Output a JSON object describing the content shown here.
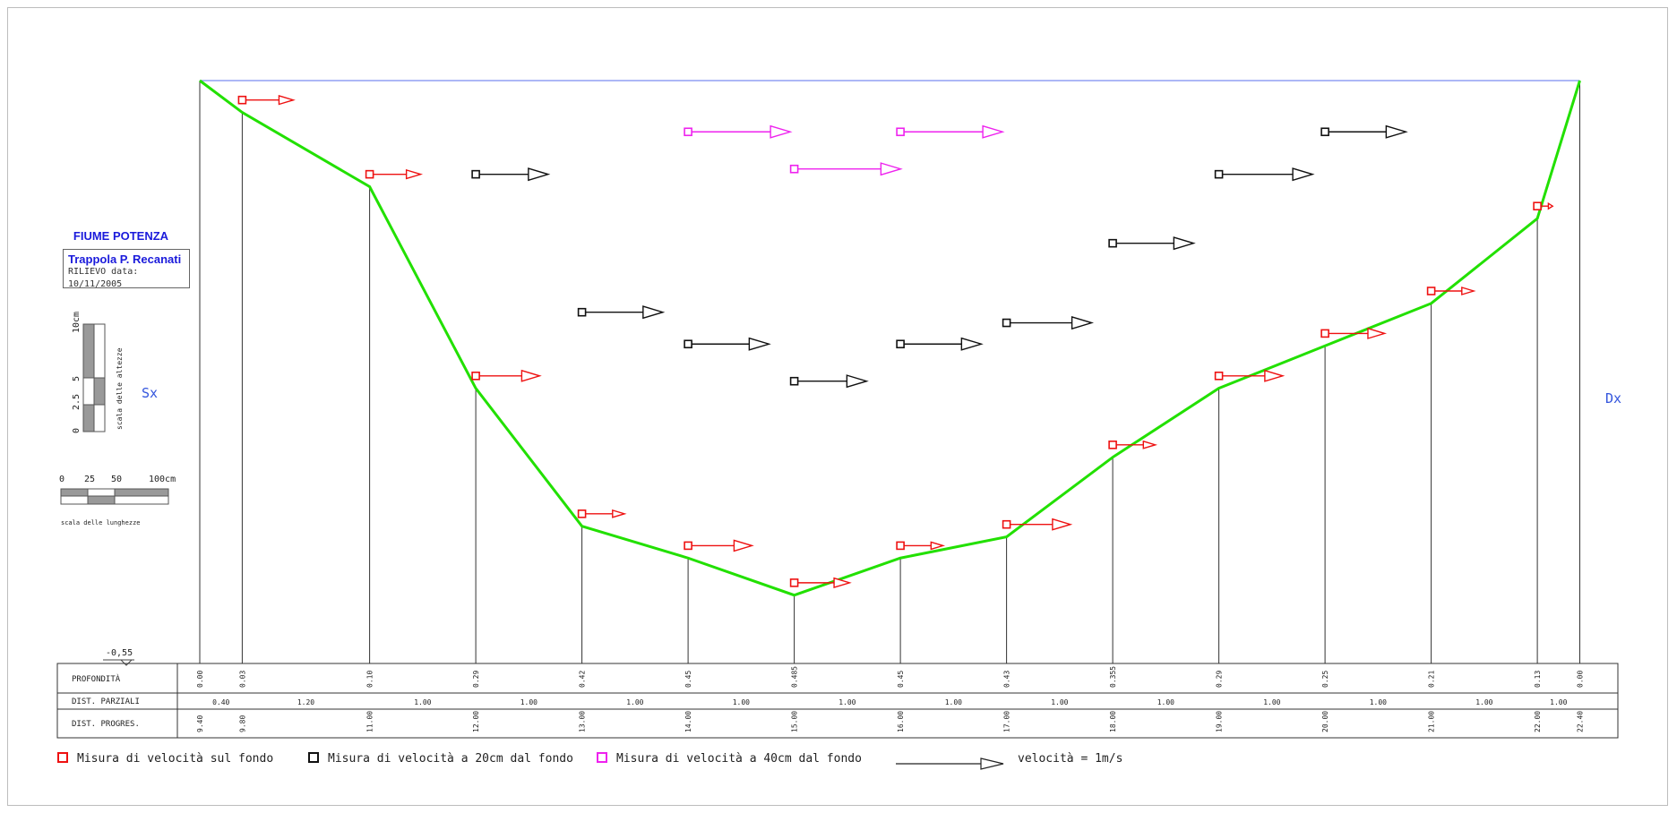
{
  "title": "FIUME POTENZA",
  "subtitle": "Trappola P. Recanati",
  "survey_date": "RILIEVO data: 10/11/2005",
  "left_bank": "Sx",
  "right_bank": "Dx",
  "water_level_mark": "-0,55",
  "vertical_scale": {
    "caption": "scala delle altezze",
    "ticks": [
      "0",
      "2.5",
      "5",
      "10cm"
    ]
  },
  "horizontal_scale": {
    "caption": "scala delle lunghezze",
    "ticks": [
      "0",
      "25",
      "50",
      "100cm"
    ]
  },
  "table": {
    "row_labels": [
      "PROFONDITÀ",
      "DIST. PARZIALI",
      "DIST. PROGRES."
    ],
    "depths": [
      "0.00",
      "0.03",
      "0.10",
      "0.29",
      "0.42",
      "0.45",
      "0.485",
      "0.45",
      "0.43",
      "0.355",
      "0.29",
      "0.25",
      "0.21",
      "0.13",
      "0.00"
    ],
    "partial_distances": [
      "0.40",
      "1.20",
      "1.00",
      "1.00",
      "1.00",
      "1.00",
      "1.00",
      "1.00",
      "1.00",
      "1.00",
      "1.00",
      "1.00",
      "1.00",
      "1.00",
      "0.40"
    ],
    "progressive_distances": [
      "9.40",
      "9.80",
      "11.00",
      "12.00",
      "13.00",
      "14.00",
      "15.00",
      "16.00",
      "17.00",
      "18.00",
      "19.00",
      "20.00",
      "21.00",
      "22.00",
      "22.40"
    ]
  },
  "legend": {
    "bottom": "Misura di velocità sul fondo",
    "at_20cm": "Misura di velocità a 20cm dal fondo",
    "at_40cm": "Misura di velocità a 40cm dal fondo",
    "scale_vector": "velocità = 1m/s"
  },
  "colors": {
    "bed": "#22e000",
    "water": "#7a8cf0",
    "bottom": "#ee1111",
    "at_20cm": "#111111",
    "at_40cm": "#ee22ee",
    "text_blue": "#1a1adb"
  },
  "chart_data": {
    "type": "river_cross_section",
    "x_unit": "m",
    "depth_unit": "m",
    "stations": [
      9.4,
      9.8,
      11.0,
      12.0,
      13.0,
      14.0,
      15.0,
      16.0,
      17.0,
      18.0,
      19.0,
      20.0,
      21.0,
      22.0,
      22.4
    ],
    "bed_depths": [
      0.0,
      0.03,
      0.1,
      0.29,
      0.42,
      0.45,
      0.485,
      0.45,
      0.43,
      0.355,
      0.29,
      0.25,
      0.21,
      0.13,
      0.0
    ],
    "velocity_scale_ref_m_s": 1,
    "velocities": [
      {
        "level": "bottom",
        "station": 9.8,
        "velocity_m_s": 0.6
      },
      {
        "level": "bottom",
        "station": 11.0,
        "velocity_m_s": 0.6
      },
      {
        "level": "bottom",
        "station": 12.0,
        "velocity_m_s": 0.75
      },
      {
        "level": "bottom",
        "station": 13.0,
        "velocity_m_s": 0.5
      },
      {
        "level": "bottom",
        "station": 14.0,
        "velocity_m_s": 0.75
      },
      {
        "level": "bottom",
        "station": 15.0,
        "velocity_m_s": 0.65
      },
      {
        "level": "bottom",
        "station": 16.0,
        "velocity_m_s": 0.5
      },
      {
        "level": "bottom",
        "station": 17.0,
        "velocity_m_s": 0.75
      },
      {
        "level": "bottom",
        "station": 18.0,
        "velocity_m_s": 0.5
      },
      {
        "level": "bottom",
        "station": 19.0,
        "velocity_m_s": 0.75
      },
      {
        "level": "bottom",
        "station": 20.0,
        "velocity_m_s": 0.7
      },
      {
        "level": "bottom",
        "station": 21.0,
        "velocity_m_s": 0.5
      },
      {
        "level": "bottom",
        "station": 22.0,
        "velocity_m_s": 0.18
      },
      {
        "level": "20cm",
        "station": 12.0,
        "velocity_m_s": 0.85
      },
      {
        "level": "20cm",
        "station": 13.0,
        "velocity_m_s": 0.95
      },
      {
        "level": "20cm",
        "station": 14.0,
        "velocity_m_s": 0.95
      },
      {
        "level": "20cm",
        "station": 15.0,
        "velocity_m_s": 0.85
      },
      {
        "level": "20cm",
        "station": 16.0,
        "velocity_m_s": 0.95
      },
      {
        "level": "20cm",
        "station": 17.0,
        "velocity_m_s": 1.0
      },
      {
        "level": "20cm",
        "station": 18.0,
        "velocity_m_s": 0.95
      },
      {
        "level": "20cm",
        "station": 19.0,
        "velocity_m_s": 1.1
      },
      {
        "level": "20cm",
        "station": 20.0,
        "velocity_m_s": 0.95
      },
      {
        "level": "40cm",
        "station": 14.0,
        "velocity_m_s": 1.2
      },
      {
        "level": "40cm",
        "station": 15.0,
        "velocity_m_s": 1.25
      },
      {
        "level": "40cm",
        "station": 16.0,
        "velocity_m_s": 1.2
      }
    ]
  }
}
